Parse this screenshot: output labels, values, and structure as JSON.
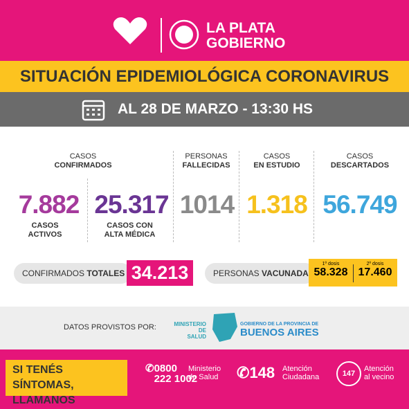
{
  "header": {
    "brand": [
      "LA PLATA",
      "GOBIERNO"
    ]
  },
  "title": "SITUACIÓN EPIDEMIOLÓGICA CORONAVIRUS",
  "date": "AL 28 DE MARZO - 13:30 HS",
  "confirmed": {
    "label": [
      "CASOS",
      "CONFIRMADOS"
    ],
    "active": {
      "value": "7.882",
      "label": [
        "CASOS",
        "ACTIVOS"
      ]
    },
    "discharged": {
      "value": "25.317",
      "label": [
        "CASOS CON",
        "ALTA MÉDICA"
      ]
    }
  },
  "deaths": {
    "label": [
      "PERSONAS",
      "FALLECIDAS"
    ],
    "value": "1014"
  },
  "under_study": {
    "label": [
      "CASOS",
      "EN ESTUDIO"
    ],
    "value": "1.318"
  },
  "discarded": {
    "label": [
      "CASOS",
      "DESCARTADOS"
    ],
    "value": "56.749"
  },
  "total": {
    "label": "CONFIRMADOS",
    "label_bold": "TOTALES",
    "value": "34.213"
  },
  "vaccinated": {
    "label": "PERSONAS",
    "label_bold": "VACUNADAS",
    "doses": [
      {
        "label": "1º dosis",
        "value": "58.328"
      },
      {
        "label": "2º dosis",
        "value": "17.460"
      }
    ]
  },
  "source": {
    "label": "DATOS PROVISTOS POR:",
    "ministry": [
      "MINISTERIO DE",
      "SALUD"
    ],
    "province": [
      "GOBIERNO DE LA PROVINCIA DE",
      "BUENOS AIRES"
    ]
  },
  "footer": {
    "symptoms": [
      "SI TENÉS SÍNTOMAS,",
      "LLAMANOS"
    ],
    "phones": [
      {
        "number": [
          "0800",
          "222 1002"
        ],
        "label": [
          "Ministerio",
          "de Salud"
        ]
      },
      {
        "number": [
          "148"
        ],
        "label": [
          "Atención",
          "Ciudadana"
        ]
      },
      {
        "number": [
          "147"
        ],
        "label": [
          "Atención",
          "al vecino"
        ]
      }
    ]
  }
}
